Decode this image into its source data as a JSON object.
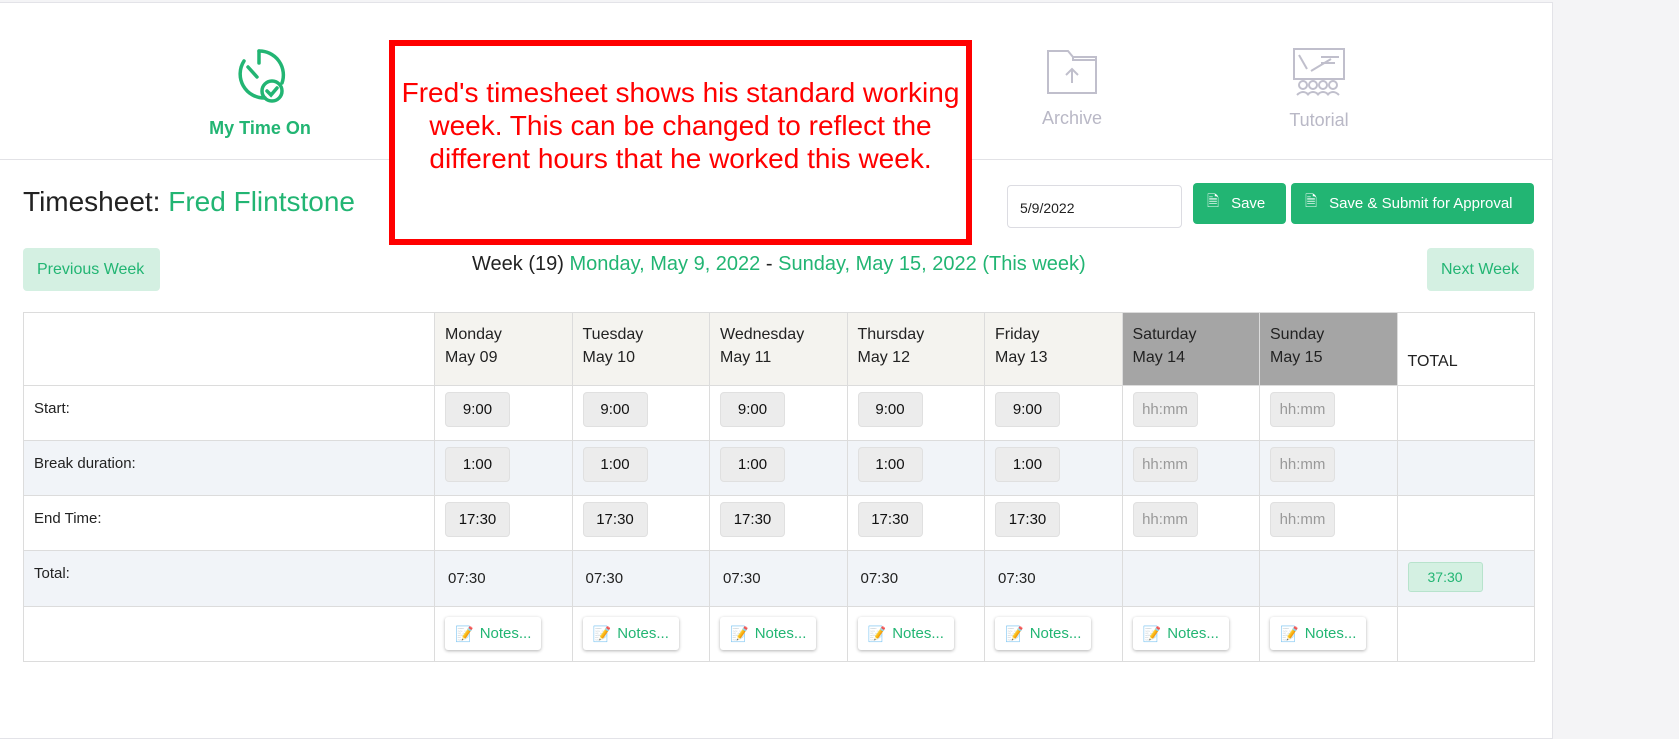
{
  "nav": {
    "items": [
      {
        "label": "My Time On",
        "icon": "timer-check-icon",
        "active": true
      },
      {
        "label": "Archive",
        "icon": "folder-upload-icon",
        "active": false
      },
      {
        "label": "Tutorial",
        "icon": "presentation-icon",
        "active": false
      }
    ]
  },
  "callout": "Fred's timesheet shows his standard working week. This can be changed to reflect the different hours that he worked this week.",
  "header": {
    "title_prefix": "Timesheet:",
    "employee": "Fred Flintstone",
    "date_value": "5/9/2022",
    "save_label": "Save",
    "submit_label": "Save & Submit for Approval"
  },
  "week": {
    "prev_label": "Previous Week",
    "next_label": "Next Week",
    "prefix": "Week (19)",
    "start": "Monday, May 9, 2022",
    "sep": "-",
    "end": "Sunday, May 15, 2022 (This week)"
  },
  "table": {
    "days": [
      {
        "name": "Monday",
        "date": "May 09"
      },
      {
        "name": "Tuesday",
        "date": "May 10"
      },
      {
        "name": "Wednesday",
        "date": "May 11"
      },
      {
        "name": "Thursday",
        "date": "May 12"
      },
      {
        "name": "Friday",
        "date": "May 13"
      },
      {
        "name": "Saturday",
        "date": "May 14"
      },
      {
        "name": "Sunday",
        "date": "May 15"
      }
    ],
    "total_header": "TOTAL",
    "rows": [
      {
        "label": "Start:",
        "values": [
          "9:00",
          "9:00",
          "9:00",
          "9:00",
          "9:00",
          "",
          "",
          ""
        ]
      },
      {
        "label": "Break duration:",
        "values": [
          "1:00",
          "1:00",
          "1:00",
          "1:00",
          "1:00",
          "",
          "",
          ""
        ]
      },
      {
        "label": "End Time:",
        "values": [
          "17:30",
          "17:30",
          "17:30",
          "17:30",
          "17:30",
          "",
          "",
          ""
        ]
      }
    ],
    "placeholder": "hh:mm",
    "total_label": "Total:",
    "totals": [
      "07:30",
      "07:30",
      "07:30",
      "07:30",
      "07:30",
      "",
      ""
    ],
    "grand_total": "37:30",
    "notes_label": "Notes..."
  },
  "colors": {
    "accent": "#22b573",
    "callout": "#ff0000",
    "weekend": "#a5a5a5"
  }
}
